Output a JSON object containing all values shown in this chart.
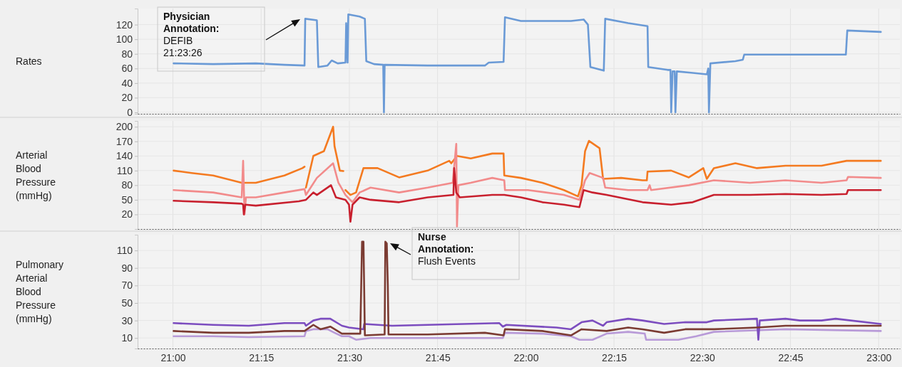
{
  "chart_data": [
    {
      "type": "line",
      "ylabel": "Rates",
      "xlim": [
        20.9,
        23.06
      ],
      "ylim": [
        -2,
        142
      ],
      "yticks": [
        0,
        20,
        40,
        60,
        80,
        100,
        120
      ],
      "grid": true,
      "tick_labels": "y",
      "xticks": [
        {
          "value": 21,
          "label": null
        },
        {
          "value": 21.25,
          "label": null
        },
        {
          "value": 21.5,
          "label": null
        },
        {
          "value": 21.75,
          "label": null
        },
        {
          "value": 22,
          "label": null
        },
        {
          "value": 22.25,
          "label": null
        },
        {
          "value": 22.5,
          "label": null
        },
        {
          "value": 22.75,
          "label": null
        },
        {
          "value": 23,
          "label": null
        }
      ],
      "annotations": [
        "Physician Annotation:\nDEFIB\n21:23:26"
      ],
      "series": [
        {
          "color": "#6a9ad6",
          "x": [
            21.002,
            21.114,
            21.235,
            21.316,
            21.373,
            21.375,
            21.408,
            21.412,
            21.438,
            21.45,
            21.467,
            21.489,
            21.491,
            21.495,
            21.497,
            21.529,
            21.544,
            21.548,
            21.57,
            21.596,
            21.598,
            21.6,
            21.722,
            21.884,
            21.895,
            21.937,
            21.941,
            21.986,
            22.128,
            22.164,
            22.176,
            22.183,
            22.221,
            22.225,
            22.29,
            22.345,
            22.347,
            22.402,
            22.41,
            22.412,
            22.416,
            22.422,
            22.424,
            22.428,
            22.473,
            22.513,
            22.517,
            22.519,
            22.523,
            22.594,
            22.615,
            22.619,
            22.907,
            22.911,
            23.006
          ],
          "values": [
            67,
            66,
            67,
            65,
            64,
            128,
            126,
            62,
            64,
            71,
            67,
            68,
            122,
            68,
            134,
            131,
            128,
            70,
            66,
            65,
            0,
            65,
            64,
            64,
            68,
            69,
            130,
            125,
            125,
            127,
            120,
            62,
            57,
            128,
            122,
            118,
            62,
            58,
            58,
            0,
            56,
            56,
            0,
            56,
            54,
            52,
            60,
            0,
            67,
            70,
            72,
            79,
            79,
            112,
            110
          ]
        }
      ]
    },
    {
      "type": "line",
      "ylabel": "Arterial Blood Pressure (mmHg)",
      "xlim": [
        20.9,
        23.06
      ],
      "ylim": [
        -10,
        212
      ],
      "yticks": [
        20,
        50,
        80,
        110,
        140,
        170,
        200
      ],
      "grid": true,
      "tick_labels": "y",
      "xticks": [
        {
          "value": 21,
          "label": null
        },
        {
          "value": 21.25,
          "label": null
        },
        {
          "value": 21.5,
          "label": null
        },
        {
          "value": 21.75,
          "label": null
        },
        {
          "value": 22,
          "label": null
        },
        {
          "value": 22.25,
          "label": null
        },
        {
          "value": 22.5,
          "label": null
        },
        {
          "value": 22.75,
          "label": null
        },
        {
          "value": 23,
          "label": null
        }
      ],
      "series": [
        {
          "color": "#f47a20",
          "x": [
            21.002,
            21.053,
            21.114,
            21.195,
            21.235,
            21.316,
            21.367,
            21.373,
            21.375,
            21.377,
            21.398,
            21.428,
            21.454,
            21.458,
            21.473,
            21.483,
            21.486,
            21.489,
            21.503,
            21.519,
            21.54,
            21.58,
            21.641,
            21.722,
            21.783,
            21.789,
            21.805,
            21.844,
            21.905,
            21.937,
            21.939,
            21.986,
            22.047,
            22.108,
            22.148,
            22.158,
            22.168,
            22.179,
            22.209,
            22.219,
            22.27,
            22.331,
            22.343,
            22.345,
            22.412,
            22.462,
            22.503,
            22.513,
            22.533,
            22.594,
            22.655,
            22.736,
            22.838,
            22.909,
            23.006
          ],
          "values": [
            110,
            105,
            100,
            85,
            85,
            100,
            115,
            118,
            null,
            75,
            140,
            150,
            200,
            160,
            110,
            109,
            null,
            70,
            60,
            65,
            115,
            115,
            96,
            110,
            130,
            125,
            140,
            135,
            145,
            145,
            100,
            95,
            85,
            70,
            57,
            80,
            150,
            171,
            156,
            93,
            95,
            90,
            90,
            108,
            110,
            96,
            115,
            93,
            115,
            125,
            115,
            120,
            120,
            130,
            130
          ]
        },
        {
          "color": "#f28b8b",
          "x": [
            21.002,
            21.114,
            21.195,
            21.199,
            21.203,
            21.207,
            21.235,
            21.316,
            21.373,
            21.377,
            21.408,
            21.454,
            21.469,
            21.489,
            21.509,
            21.529,
            21.56,
            21.641,
            21.722,
            21.793,
            21.803,
            21.805,
            21.809,
            21.844,
            21.905,
            21.939,
            21.941,
            22.006,
            22.108,
            22.152,
            22.168,
            22.181,
            22.219,
            22.225,
            22.29,
            22.345,
            22.351,
            22.355,
            22.462,
            22.533,
            22.635,
            22.736,
            22.838,
            22.909,
            22.913,
            23.006
          ],
          "values": [
            70,
            65,
            55,
            130,
            20,
            55,
            55,
            65,
            72,
            60,
            95,
            125,
            85,
            60,
            45,
            65,
            75,
            65,
            75,
            85,
            165,
            -5,
            80,
            85,
            95,
            90,
            70,
            70,
            60,
            50,
            90,
            105,
            95,
            75,
            70,
            70,
            80,
            70,
            80,
            90,
            85,
            90,
            85,
            90,
            97,
            95
          ]
        },
        {
          "color": "#c8202e",
          "x": [
            21.002,
            21.114,
            21.195,
            21.199,
            21.201,
            21.205,
            21.235,
            21.357,
            21.377,
            21.398,
            21.408,
            21.448,
            21.462,
            21.489,
            21.499,
            21.503,
            21.509,
            21.529,
            21.56,
            21.641,
            21.722,
            21.795,
            21.797,
            21.803,
            21.813,
            21.905,
            21.939,
            21.986,
            22.047,
            22.108,
            22.152,
            22.164,
            22.189,
            22.229,
            22.331,
            22.412,
            22.473,
            22.533,
            22.635,
            22.736,
            22.838,
            22.909,
            22.913,
            23.006
          ],
          "values": [
            48,
            45,
            42,
            40,
            20,
            40,
            38,
            47,
            50,
            65,
            60,
            80,
            55,
            50,
            40,
            5,
            40,
            55,
            50,
            45,
            55,
            60,
            115,
            65,
            55,
            60,
            60,
            55,
            45,
            40,
            35,
            70,
            65,
            60,
            45,
            40,
            45,
            60,
            60,
            62,
            60,
            62,
            70,
            70
          ]
        }
      ]
    },
    {
      "type": "line",
      "ylabel": "Pulmonary Arterial Blood Pressure (mmHg)",
      "xlim": [
        20.9,
        23.06
      ],
      "ylim": [
        -2,
        128
      ],
      "yticks": [
        10,
        30,
        50,
        70,
        90,
        110
      ],
      "grid": true,
      "xticks": [
        {
          "value": 21,
          "label": "21:00"
        },
        {
          "value": 21.25,
          "label": "21:15"
        },
        {
          "value": 21.5,
          "label": "21:30"
        },
        {
          "value": 21.75,
          "label": "21:45"
        },
        {
          "value": 22,
          "label": "22:00"
        },
        {
          "value": 22.25,
          "label": "22:15"
        },
        {
          "value": 22.5,
          "label": "22:30"
        },
        {
          "value": 22.75,
          "label": "22:45"
        },
        {
          "value": 23,
          "label": "23:00"
        }
      ],
      "annotations": [
        "Nurse Annotation:\nFlush Events"
      ],
      "series": [
        {
          "color": "#b89ad8",
          "x": [
            21.002,
            21.114,
            21.215,
            21.373,
            21.377,
            21.398,
            21.438,
            21.458,
            21.479,
            21.499,
            21.519,
            21.56,
            21.722,
            21.935,
            21.941,
            22.047,
            22.128,
            22.152,
            22.189,
            22.229,
            22.29,
            22.337,
            22.341,
            22.432,
            22.483,
            22.533,
            22.736,
            23.006
          ],
          "values": [
            12,
            12,
            11,
            12,
            18,
            20,
            20,
            16,
            12,
            12,
            8,
            10,
            10,
            10,
            16,
            15,
            12,
            8,
            8,
            15,
            17,
            15,
            8,
            8,
            12,
            17,
            20,
            18
          ]
        },
        {
          "color": "#7c4dbf",
          "x": [
            21.002,
            21.114,
            21.215,
            21.316,
            21.373,
            21.377,
            21.398,
            21.418,
            21.446,
            21.479,
            21.499,
            21.54,
            21.542,
            21.621,
            21.722,
            21.925,
            21.935,
            21.945,
            22.087,
            22.128,
            22.158,
            22.189,
            22.219,
            22.229,
            22.29,
            22.331,
            22.392,
            22.452,
            22.513,
            22.533,
            22.655,
            22.659,
            22.663,
            22.736,
            22.777,
            22.838,
            22.878,
            23.006
          ],
          "values": [
            27,
            25,
            24,
            27,
            27,
            24,
            30,
            32,
            32,
            24,
            22,
            20,
            26,
            24,
            25,
            27,
            23,
            25,
            22,
            20,
            28,
            30,
            24,
            28,
            32,
            30,
            26,
            28,
            28,
            30,
            32,
            8,
            30,
            32,
            30,
            30,
            32,
            26
          ]
        },
        {
          "color": "#7b3b32",
          "x": [
            21.002,
            21.114,
            21.215,
            21.316,
            21.373,
            21.398,
            21.418,
            21.446,
            21.479,
            21.499,
            21.531,
            21.536,
            21.54,
            21.544,
            21.6,
            21.602,
            21.606,
            21.609,
            21.611,
            21.722,
            21.884,
            21.937,
            21.941,
            22.047,
            22.128,
            22.158,
            22.229,
            22.29,
            22.331,
            22.392,
            22.452,
            22.533,
            22.655,
            22.736,
            22.838,
            23.006
          ],
          "values": [
            18,
            16,
            16,
            18,
            18,
            25,
            20,
            23,
            15,
            15,
            15,
            120,
            120,
            13,
            14,
            120,
            118,
            70,
            14,
            14,
            16,
            13,
            20,
            18,
            13,
            20,
            18,
            22,
            20,
            16,
            20,
            20,
            22,
            24,
            24,
            24
          ]
        }
      ]
    }
  ]
}
